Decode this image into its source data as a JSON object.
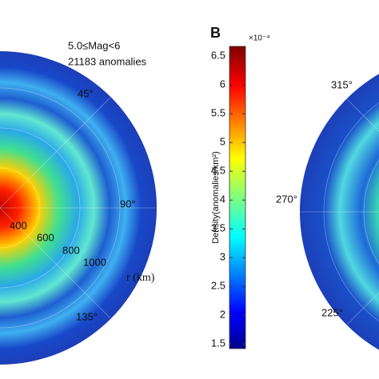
{
  "panel_a": {
    "legend_lines": [
      "5.0≤Mag<6",
      "21183 anomalies"
    ],
    "angle_labels": [
      "45°",
      "90°",
      "135°"
    ],
    "radius_labels": [
      "400",
      "600",
      "800",
      "1000"
    ],
    "radius_axis_label": "r (km)"
  },
  "panel_b": {
    "label": "B",
    "angle_labels": [
      "315°",
      "270°",
      "225°"
    ]
  },
  "colorbar": {
    "label": "Density(anomalies/km²)",
    "multiplier": "×10⁻⁴",
    "lim": [
      1.42,
      6.67
    ],
    "ticks": [
      1.5,
      2,
      2.5,
      3,
      3.5,
      4,
      4.5,
      5,
      5.5,
      6,
      6.5
    ]
  }
}
